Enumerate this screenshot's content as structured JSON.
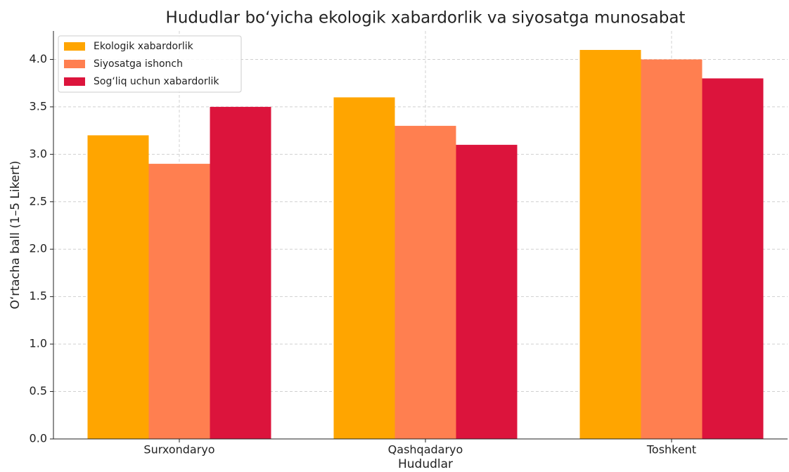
{
  "chart_data": {
    "type": "bar",
    "title": "Hududlar bo‘yicha ekologik xabardorlik va siyosatga munosabat",
    "xlabel": "Hududlar",
    "ylabel": "O‘rtacha ball (1–5 Likert)",
    "categories": [
      "Surxondaryo",
      "Qashqadaryo",
      "Toshkent"
    ],
    "series": [
      {
        "name": "Ekologik xabardorlik",
        "color": "#FFA500",
        "values": [
          3.2,
          3.6,
          4.1
        ]
      },
      {
        "name": "Siyosatga ishonch",
        "color": "#FF7F50",
        "values": [
          2.9,
          3.3,
          4.0
        ]
      },
      {
        "name": "Sog‘liq uchun xabardorlik",
        "color": "#DC143C",
        "values": [
          3.5,
          3.1,
          3.8
        ]
      }
    ],
    "ylim": [
      0,
      4.3
    ],
    "yticks": [
      {
        "value": 0,
        "label": "0.0"
      },
      0.5,
      {
        "value": 1,
        "label": "1.0"
      },
      1.5,
      {
        "value": 2,
        "label": "2.0"
      },
      2.5,
      {
        "value": 3,
        "label": "3.0"
      },
      3.5,
      {
        "value": 4,
        "label": "4.0"
      }
    ],
    "grid": true,
    "legend": "upper left"
  }
}
